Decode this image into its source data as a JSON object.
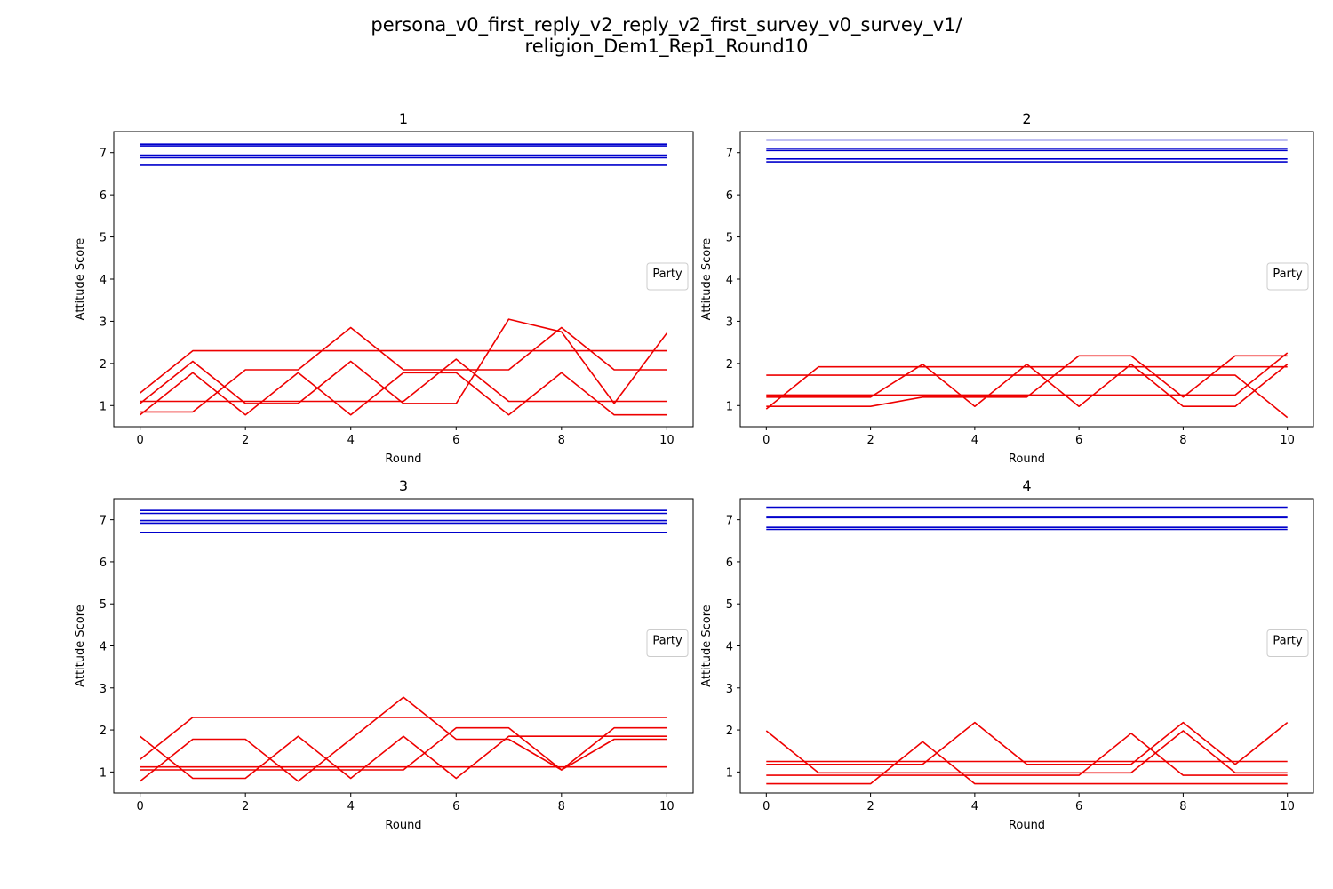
{
  "figure": {
    "suptitle_lines": [
      "persona_v0_first_reply_v2_reply_v2_first_survey_v0_survey_v1/",
      "religion_Dem1_Rep1_Round10"
    ]
  },
  "colors": {
    "dem": "#0000cc",
    "rep": "#ee0000"
  },
  "chart_data": [
    {
      "type": "line",
      "title": "1",
      "xlabel": "Round",
      "ylabel": "Attitude Score",
      "xlim": [
        -0.5,
        10.5
      ],
      "ylim": [
        0.5,
        7.5
      ],
      "xticks": [
        0,
        2,
        4,
        6,
        8,
        10
      ],
      "yticks": [
        1,
        2,
        3,
        4,
        5,
        6,
        7
      ],
      "legend": {
        "title": "Party",
        "placement": "center-right"
      },
      "x": [
        0,
        1,
        2,
        3,
        4,
        5,
        6,
        7,
        8,
        9,
        10
      ],
      "series": [
        {
          "party": "dem",
          "values": [
            7.2,
            7.2,
            7.2,
            7.2,
            7.2,
            7.2,
            7.2,
            7.2,
            7.2,
            7.2,
            7.2
          ]
        },
        {
          "party": "dem",
          "values": [
            7.16,
            7.16,
            7.16,
            7.16,
            7.16,
            7.16,
            7.16,
            7.16,
            7.16,
            7.16,
            7.16
          ]
        },
        {
          "party": "dem",
          "values": [
            6.94,
            6.94,
            6.94,
            6.94,
            6.94,
            6.94,
            6.94,
            6.94,
            6.94,
            6.94,
            6.94
          ]
        },
        {
          "party": "dem",
          "values": [
            6.88,
            6.88,
            6.88,
            6.88,
            6.88,
            6.88,
            6.88,
            6.88,
            6.88,
            6.88,
            6.88
          ]
        },
        {
          "party": "dem",
          "values": [
            6.7,
            6.7,
            6.7,
            6.7,
            6.7,
            6.7,
            6.7,
            6.7,
            6.7,
            6.7,
            6.7
          ]
        },
        {
          "party": "rep",
          "values": [
            1.3,
            2.3,
            2.3,
            2.3,
            2.3,
            2.3,
            2.3,
            2.3,
            2.3,
            2.3,
            2.3
          ]
        },
        {
          "party": "rep",
          "values": [
            1.05,
            2.05,
            1.05,
            1.05,
            2.05,
            1.05,
            1.05,
            3.05,
            2.75,
            1.05,
            2.72
          ]
        },
        {
          "party": "rep",
          "values": [
            0.78,
            1.78,
            0.78,
            1.78,
            0.78,
            1.78,
            1.78,
            0.78,
            1.78,
            0.78,
            0.78
          ]
        },
        {
          "party": "rep",
          "values": [
            0.85,
            0.85,
            1.85,
            1.85,
            2.85,
            1.85,
            1.85,
            1.85,
            2.85,
            1.85,
            1.85
          ]
        },
        {
          "party": "rep",
          "values": [
            1.1,
            1.1,
            1.1,
            1.1,
            1.1,
            1.1,
            2.1,
            1.1,
            1.1,
            1.1,
            1.1
          ]
        }
      ]
    },
    {
      "type": "line",
      "title": "2",
      "xlabel": "Round",
      "ylabel": "Attitude Score",
      "xlim": [
        -0.5,
        10.5
      ],
      "ylim": [
        0.5,
        7.5
      ],
      "xticks": [
        0,
        2,
        4,
        6,
        8,
        10
      ],
      "yticks": [
        1,
        2,
        3,
        4,
        5,
        6,
        7
      ],
      "legend": {
        "title": "Party",
        "placement": "center-right"
      },
      "x": [
        0,
        1,
        2,
        3,
        4,
        5,
        6,
        7,
        8,
        9,
        10
      ],
      "series": [
        {
          "party": "dem",
          "values": [
            7.3,
            7.3,
            7.3,
            7.3,
            7.3,
            7.3,
            7.3,
            7.3,
            7.3,
            7.3,
            7.3
          ]
        },
        {
          "party": "dem",
          "values": [
            7.1,
            7.1,
            7.1,
            7.1,
            7.1,
            7.1,
            7.1,
            7.1,
            7.1,
            7.1,
            7.1
          ]
        },
        {
          "party": "dem",
          "values": [
            7.05,
            7.05,
            7.05,
            7.05,
            7.05,
            7.05,
            7.05,
            7.05,
            7.05,
            7.05,
            7.05
          ]
        },
        {
          "party": "dem",
          "values": [
            6.85,
            6.85,
            6.85,
            6.85,
            6.85,
            6.85,
            6.85,
            6.85,
            6.85,
            6.85,
            6.85
          ]
        },
        {
          "party": "dem",
          "values": [
            6.78,
            6.78,
            6.78,
            6.78,
            6.78,
            6.78,
            6.78,
            6.78,
            6.78,
            6.78,
            6.78
          ]
        },
        {
          "party": "rep",
          "values": [
            0.92,
            1.92,
            1.92,
            1.92,
            1.92,
            1.92,
            1.92,
            1.92,
            1.92,
            1.92,
            1.92
          ]
        },
        {
          "party": "rep",
          "values": [
            1.72,
            1.72,
            1.72,
            1.72,
            1.72,
            1.72,
            1.72,
            1.72,
            1.72,
            1.72,
            0.72
          ]
        },
        {
          "party": "rep",
          "values": [
            1.25,
            1.25,
            1.25,
            1.25,
            1.25,
            1.25,
            1.25,
            1.25,
            1.25,
            1.25,
            2.25
          ]
        },
        {
          "party": "rep",
          "values": [
            1.2,
            1.2,
            1.2,
            1.98,
            0.98,
            1.98,
            0.98,
            1.98,
            0.98,
            0.98,
            1.98
          ]
        },
        {
          "party": "rep",
          "values": [
            0.98,
            0.98,
            0.98,
            1.2,
            1.2,
            1.2,
            2.18,
            2.18,
            1.2,
            2.18,
            2.18
          ]
        }
      ]
    },
    {
      "type": "line",
      "title": "3",
      "xlabel": "Round",
      "ylabel": "Attitude Score",
      "xlim": [
        -0.5,
        10.5
      ],
      "ylim": [
        0.5,
        7.5
      ],
      "xticks": [
        0,
        2,
        4,
        6,
        8,
        10
      ],
      "yticks": [
        1,
        2,
        3,
        4,
        5,
        6,
        7
      ],
      "legend": {
        "title": "Party",
        "placement": "center-right"
      },
      "x": [
        0,
        1,
        2,
        3,
        4,
        5,
        6,
        7,
        8,
        9,
        10
      ],
      "series": [
        {
          "party": "dem",
          "values": [
            7.22,
            7.22,
            7.22,
            7.22,
            7.22,
            7.22,
            7.22,
            7.22,
            7.22,
            7.22,
            7.22
          ]
        },
        {
          "party": "dem",
          "values": [
            7.15,
            7.15,
            7.15,
            7.15,
            7.15,
            7.15,
            7.15,
            7.15,
            7.15,
            7.15,
            7.15
          ]
        },
        {
          "party": "dem",
          "values": [
            6.98,
            6.98,
            6.98,
            6.98,
            6.98,
            6.98,
            6.98,
            6.98,
            6.98,
            6.98,
            6.98
          ]
        },
        {
          "party": "dem",
          "values": [
            6.92,
            6.92,
            6.92,
            6.92,
            6.92,
            6.92,
            6.92,
            6.92,
            6.92,
            6.92,
            6.92
          ]
        },
        {
          "party": "dem",
          "values": [
            6.7,
            6.7,
            6.7,
            6.7,
            6.7,
            6.7,
            6.7,
            6.7,
            6.7,
            6.7,
            6.7
          ]
        },
        {
          "party": "rep",
          "values": [
            1.3,
            2.3,
            2.3,
            2.3,
            2.3,
            2.3,
            2.3,
            2.3,
            2.3,
            2.3,
            2.3
          ]
        },
        {
          "party": "rep",
          "values": [
            1.85,
            0.85,
            0.85,
            1.85,
            0.85,
            1.85,
            0.85,
            1.85,
            1.85,
            1.85,
            1.85
          ]
        },
        {
          "party": "rep",
          "values": [
            0.78,
            1.78,
            1.78,
            0.78,
            1.78,
            2.78,
            1.78,
            1.78,
            1.05,
            2.05,
            2.05
          ]
        },
        {
          "party": "rep",
          "values": [
            1.05,
            1.05,
            1.05,
            1.05,
            1.05,
            1.05,
            2.05,
            2.05,
            1.05,
            1.78,
            1.78
          ]
        },
        {
          "party": "rep",
          "values": [
            1.12,
            1.12,
            1.12,
            1.12,
            1.12,
            1.12,
            1.12,
            1.12,
            1.12,
            1.12,
            1.12
          ]
        }
      ]
    },
    {
      "type": "line",
      "title": "4",
      "xlabel": "Round",
      "ylabel": "Attitude Score",
      "xlim": [
        -0.5,
        10.5
      ],
      "ylim": [
        0.5,
        7.5
      ],
      "xticks": [
        0,
        2,
        4,
        6,
        8,
        10
      ],
      "yticks": [
        1,
        2,
        3,
        4,
        5,
        6,
        7
      ],
      "legend": {
        "title": "Party",
        "placement": "center-right"
      },
      "x": [
        0,
        1,
        2,
        3,
        4,
        5,
        6,
        7,
        8,
        9,
        10
      ],
      "series": [
        {
          "party": "dem",
          "values": [
            7.3,
            7.3,
            7.3,
            7.3,
            7.3,
            7.3,
            7.3,
            7.3,
            7.3,
            7.3,
            7.3
          ]
        },
        {
          "party": "dem",
          "values": [
            7.08,
            7.08,
            7.08,
            7.08,
            7.08,
            7.08,
            7.08,
            7.08,
            7.08,
            7.08,
            7.08
          ]
        },
        {
          "party": "dem",
          "values": [
            7.05,
            7.05,
            7.05,
            7.05,
            7.05,
            7.05,
            7.05,
            7.05,
            7.05,
            7.05,
            7.05
          ]
        },
        {
          "party": "dem",
          "values": [
            6.82,
            6.82,
            6.82,
            6.82,
            6.82,
            6.82,
            6.82,
            6.82,
            6.82,
            6.82,
            6.82
          ]
        },
        {
          "party": "dem",
          "values": [
            6.77,
            6.77,
            6.77,
            6.77,
            6.77,
            6.77,
            6.77,
            6.77,
            6.77,
            6.77,
            6.77
          ]
        },
        {
          "party": "rep",
          "values": [
            1.98,
            0.98,
            0.98,
            0.98,
            0.98,
            0.98,
            0.98,
            0.98,
            1.98,
            0.98,
            0.98
          ]
        },
        {
          "party": "rep",
          "values": [
            1.25,
            1.25,
            1.25,
            1.25,
            1.25,
            1.25,
            1.25,
            1.25,
            1.25,
            1.25,
            1.25
          ]
        },
        {
          "party": "rep",
          "values": [
            1.18,
            1.18,
            1.18,
            1.18,
            2.18,
            1.18,
            1.18,
            1.18,
            2.18,
            1.18,
            2.18
          ]
        },
        {
          "party": "rep",
          "values": [
            0.92,
            0.92,
            0.92,
            0.92,
            0.92,
            0.92,
            0.92,
            1.92,
            0.92,
            0.92,
            0.92
          ]
        },
        {
          "party": "rep",
          "values": [
            0.72,
            0.72,
            0.72,
            1.72,
            0.72,
            0.72,
            0.72,
            0.72,
            0.72,
            0.72,
            0.72
          ]
        }
      ]
    }
  ]
}
